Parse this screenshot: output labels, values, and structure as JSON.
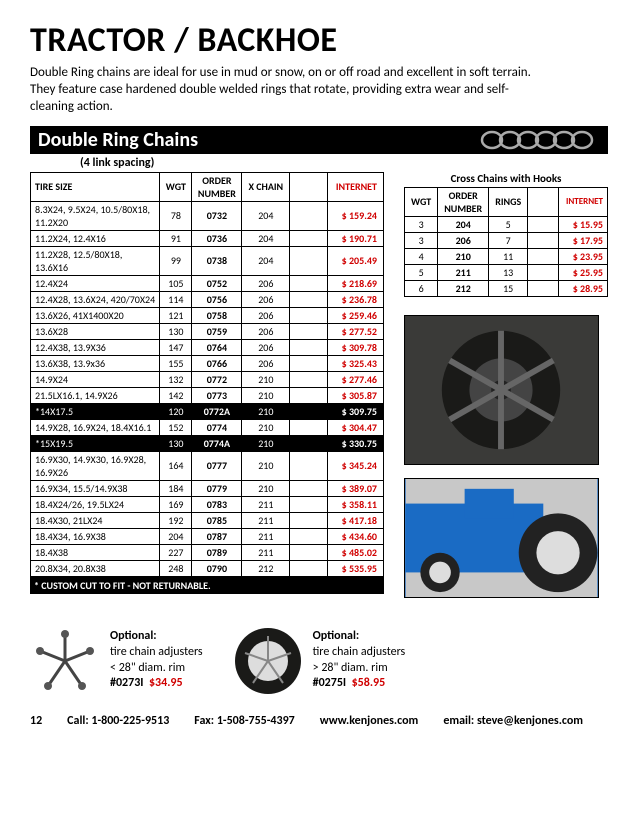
{
  "title": "TRACTOR / BACKHOE",
  "intro": "Double Ring chains are ideal for use in mud or snow, on or off road and excellent in soft terrain.  They feature case hardened double welded rings that rotate, providing extra wear and self-cleaning action.",
  "section": "Double Ring Chains",
  "subhead": "(4 link spacing)",
  "main_headers": {
    "tire": "TIRE SIZE",
    "wgt": "WGT",
    "ord": "ORDER NUMBER",
    "xch": "X CHAIN",
    "net": "INTERNET"
  },
  "main_rows": [
    {
      "tire": "8.3X24, 9.5X24, 10.5/80X18, 11.2X20",
      "wgt": "78",
      "ord": "0732",
      "xch": "204",
      "net": "$ 159.24"
    },
    {
      "tire": "11.2X24, 12.4X16",
      "wgt": "91",
      "ord": "0736",
      "xch": "204",
      "net": "$ 190.71"
    },
    {
      "tire": "11.2X28, 12.5/80X18, 13.6X16",
      "wgt": "99",
      "ord": "0738",
      "xch": "204",
      "net": "$ 205.49"
    },
    {
      "tire": "12.4X24",
      "wgt": "105",
      "ord": "0752",
      "xch": "206",
      "net": "$ 218.69"
    },
    {
      "tire": "12.4X28, 13.6X24, 420/70X24",
      "wgt": "114",
      "ord": "0756",
      "xch": "206",
      "net": "$ 236.78"
    },
    {
      "tire": "13.6X26, 41X1400X20",
      "wgt": "121",
      "ord": "0758",
      "xch": "206",
      "net": "$ 259.46"
    },
    {
      "tire": "13.6X28",
      "wgt": "130",
      "ord": "0759",
      "xch": "206",
      "net": "$ 277.52"
    },
    {
      "tire": "12.4X38, 13.9X36",
      "wgt": "147",
      "ord": "0764",
      "xch": "206",
      "net": "$ 309.78"
    },
    {
      "tire": "13.6X38, 13.9x36",
      "wgt": "155",
      "ord": "0766",
      "xch": "206",
      "net": "$ 325.43"
    },
    {
      "tire": "14.9X24",
      "wgt": "132",
      "ord": "0772",
      "xch": "210",
      "net": "$ 277.46"
    },
    {
      "tire": "21.5LX16.1, 14.9X26",
      "wgt": "142",
      "ord": "0773",
      "xch": "210",
      "net": "$ 305.87"
    },
    {
      "tire": "*14X17.5",
      "wgt": "120",
      "ord": "0772A",
      "xch": "210",
      "net": "$ 309.75",
      "inv": true
    },
    {
      "tire": "14.9X28, 16.9X24, 18.4X16.1",
      "wgt": "152",
      "ord": "0774",
      "xch": "210",
      "net": "$ 304.47"
    },
    {
      "tire": "*15X19.5",
      "wgt": "130",
      "ord": "0774A",
      "xch": "210",
      "net": "$ 330.75",
      "inv": true
    },
    {
      "tire": "16.9X30, 14.9X30, 16.9X28, 16.9X26",
      "wgt": "164",
      "ord": "0777",
      "xch": "210",
      "net": "$ 345.24"
    },
    {
      "tire": "16.9X34, 15.5/14.9X38",
      "wgt": "184",
      "ord": "0779",
      "xch": "210",
      "net": "$ 389.07"
    },
    {
      "tire": "18.4X24/26, 19.5LX24",
      "wgt": "169",
      "ord": "0783",
      "xch": "211",
      "net": "$ 358.11"
    },
    {
      "tire": "18.4X30, 21LX24",
      "wgt": "192",
      "ord": "0785",
      "xch": "211",
      "net": "$ 417.18"
    },
    {
      "tire": "18.4X34, 16.9X38",
      "wgt": "204",
      "ord": "0787",
      "xch": "211",
      "net": "$ 434.60"
    },
    {
      "tire": "18.4X38",
      "wgt": "227",
      "ord": "0789",
      "xch": "211",
      "net": "$ 485.02"
    },
    {
      "tire": "20.8X34, 20.8X38",
      "wgt": "248",
      "ord": "0790",
      "xch": "212",
      "net": "$ 535.95"
    }
  ],
  "foot_note": "* CUSTOM CUT TO FIT - NOT RETURNABLE.",
  "cross": {
    "title": "Cross Chains with Hooks",
    "headers": {
      "wgt": "WGT",
      "ord": "ORDER NUMBER",
      "rings": "RINGS",
      "net": "INTERNET"
    },
    "rows": [
      {
        "wgt": "3",
        "ord": "204",
        "rings": "5",
        "net": "$   15.95"
      },
      {
        "wgt": "3",
        "ord": "206",
        "rings": "7",
        "net": "$   17.95"
      },
      {
        "wgt": "4",
        "ord": "210",
        "rings": "11",
        "net": "$   23.95"
      },
      {
        "wgt": "5",
        "ord": "211",
        "rings": "13",
        "net": "$   25.95"
      },
      {
        "wgt": "6",
        "ord": "212",
        "rings": "15",
        "net": "$   28.95"
      }
    ]
  },
  "opt1": {
    "h": "Optional:",
    "l1": "tire chain adjusters",
    "l2": "< 28\" diam. rim",
    "sku": "#0273I",
    "price": "$34.95"
  },
  "opt2": {
    "h": "Optional:",
    "l1": "tire chain adjusters",
    "l2": "> 28\" diam. rim",
    "sku": "#0275I",
    "price": "$58.95"
  },
  "footer": {
    "page": "12",
    "call": "Call:  1-800-225-9513",
    "fax": "Fax:  1-508-755-4397",
    "web": "www.kenjones.com",
    "email": "email:  steve@kenjones.com"
  }
}
